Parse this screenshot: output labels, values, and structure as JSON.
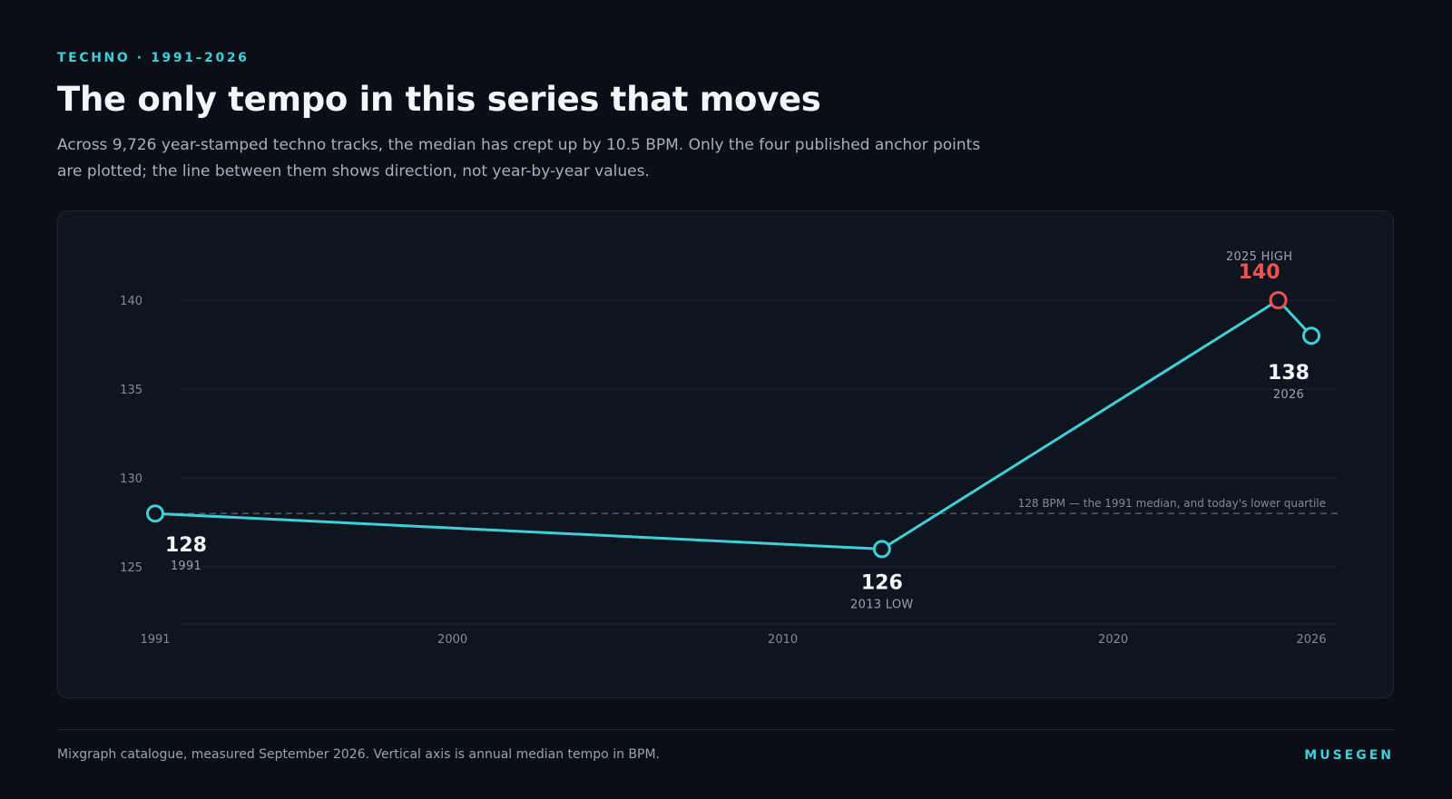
{
  "header": {
    "eyebrow": "TECHNO · 1991–2026",
    "title": "The only tempo in this series that moves",
    "subtitle": "Across 9,726 year-stamped techno tracks, the median has crept up by 10.5 BPM. Only the four published anchor points are plotted; the line between them shows direction, not year-by-year values."
  },
  "chart_data": {
    "type": "line",
    "xlim": [
      1991,
      2026
    ],
    "ylim": [
      121.5,
      143
    ],
    "x_ticks": [
      1991,
      2000,
      2010,
      2020,
      2026
    ],
    "y_ticks": [
      125,
      130,
      135,
      140
    ],
    "grid": true,
    "series": [
      {
        "points": [
          {
            "x": 1991,
            "y": 128,
            "value_label": "128",
            "sub_label": "1991",
            "highlight": false
          },
          {
            "x": 2013,
            "y": 126,
            "value_label": "126",
            "sub_label": "2013 LOW",
            "highlight": false
          },
          {
            "x": 2025,
            "y": 140,
            "value_label": "140",
            "sub_label": "2025 HIGH",
            "highlight": true
          },
          {
            "x": 2026,
            "y": 138,
            "value_label": "138",
            "sub_label": "2026",
            "highlight": false
          }
        ]
      }
    ],
    "reference_line": {
      "y": 128,
      "label": "128 BPM — the 1991 median, and today's lower quartile"
    },
    "colors": {
      "line": "#3fcfd8",
      "highlight": "#f05252",
      "grid": "#1c2430",
      "reference": "#56606d"
    }
  },
  "footer": {
    "source": "Mixgraph catalogue, measured September 2026. Vertical axis is annual median tempo in BPM.",
    "brand": "MUSEGEN"
  }
}
